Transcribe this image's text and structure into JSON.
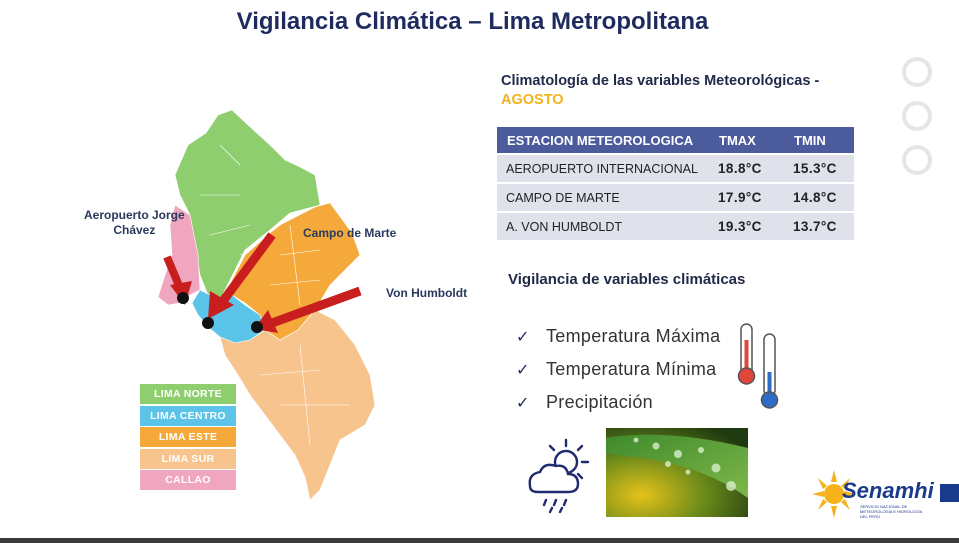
{
  "title": "Vigilancia Climática – Lima Metropolitana",
  "map": {
    "labels": {
      "aeropuerto": "Aeropuerto Jorge\nChávez",
      "campo_marte": "Campo de Marte",
      "von_humboldt": "Von Humboldt"
    },
    "legend": [
      {
        "label": "LIMA NORTE",
        "color": "#8fce6e"
      },
      {
        "label": "LIMA CENTRO",
        "color": "#5bc4e8"
      },
      {
        "label": "LIMA ESTE",
        "color": "#f5a93a"
      },
      {
        "label": "LIMA SUR",
        "color": "#f7c48e"
      },
      {
        "label": "CALLAO",
        "color": "#f1a6bf"
      }
    ]
  },
  "climatology": {
    "title": "Climatología de las variables Meteorológicas -",
    "month": "AGOSTO",
    "headers": [
      "ESTACION METEOROLOGICA",
      "TMAX",
      "TMIN"
    ],
    "rows": [
      {
        "station": "AEROPUERTO INTERNACIONAL",
        "tmax": "18.8°C",
        "tmin": "15.3°C"
      },
      {
        "station": "CAMPO DE MARTE",
        "tmax": "17.9°C",
        "tmin": "14.8°C"
      },
      {
        "station": "A. VON HUMBOLDT",
        "tmax": "19.3°C",
        "tmin": "13.7°C"
      }
    ]
  },
  "vigilancia": {
    "title": "Vigilancia de variables climáticas",
    "items": [
      "Temperatura Máxima",
      "Temperatura Mínima",
      "Precipitación"
    ]
  },
  "logo": {
    "name": "Senamhi",
    "subtitle": "SERVICIO NACIONAL DE METEOROLOGÍA E HIDROLOGÍA DEL PERÚ"
  },
  "colors": {
    "title": "#1f2b5e",
    "header_bg": "#4b5b9c",
    "row_bg": "#dfe2ea",
    "accent_month": "#f2b31b",
    "arrow": "#c81e1e"
  },
  "icons": [
    "check-icon",
    "thermometer-icon",
    "weather-cloud-sun-rain-icon",
    "leaf-photo"
  ]
}
